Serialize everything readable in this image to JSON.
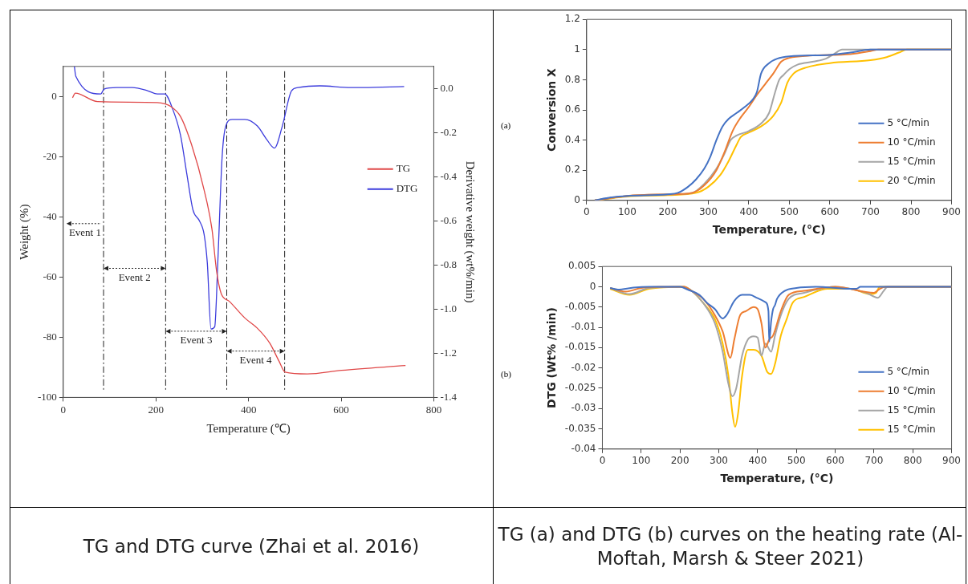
{
  "chart_data": [
    {
      "type": "line",
      "xlabel": "Temperature (℃)",
      "ylabel": "Weight (%)",
      "y2label": "Derivative weight (wt%/min)",
      "xlim": [
        0,
        800
      ],
      "xticks": [
        0,
        200,
        400,
        600,
        800
      ],
      "ylim": [
        -100,
        10
      ],
      "yticks": [
        -100,
        -80,
        -60,
        -40,
        -20,
        0
      ],
      "y2lim": [
        -1.4,
        0.1
      ],
      "y2ticks": [
        -1.4,
        -1.2,
        {
          "value": -1,
          "label": "-1.0"
        },
        -0.8,
        -0.6,
        -0.4,
        -0.2,
        {
          "value": 0,
          "label": "0.0"
        }
      ],
      "legend": "top right",
      "grid": false,
      "ref_lines": [
        {
          "axis": "x",
          "value": 87,
          "line_style": "dashed"
        },
        {
          "axis": "x",
          "value": 221,
          "line_style": "dashed"
        },
        {
          "axis": "x",
          "value": 353,
          "line_style": "dashed"
        },
        {
          "axis": "x",
          "value": 478,
          "line_style": "dashed"
        }
      ],
      "annotations": [
        "Event 1",
        "Event 2",
        "Event 3",
        "Event 4",
        "TG and DTG curve (Zhai et al. 2016)"
      ],
      "series": [
        {
          "name": "TG",
          "color": "#e04848",
          "x": [
            20,
            26,
            74,
            203,
            233,
            253,
            277,
            304,
            321,
            331,
            341,
            358,
            392,
            419,
            446,
            466,
            479,
            527,
            601,
            739
          ],
          "values": [
            -0.4,
            1.1,
            -1.7,
            -2,
            -3.4,
            -6.6,
            -16,
            -31,
            -44,
            -58,
            -65.5,
            -68,
            -73.6,
            -77,
            -82,
            -88,
            -91.6,
            -92.2,
            -91,
            -89.4
          ]
        },
        {
          "name": "DTG",
          "color": "#3c3cdc",
          "axis": "y2",
          "x": [
            24,
            27,
            81,
            88,
            115,
            149,
            182,
            203,
            219,
            236,
            253,
            267,
            280,
            294,
            304,
            311,
            319,
            327,
            334,
            343,
            351,
            365,
            378,
            392,
            419,
            439,
            456,
            473,
            493,
            507,
            554,
            621,
            648,
            736
          ],
          "values": [
            0.1,
            0.056,
            -0.025,
            -0.003,
            0.004,
            0.004,
            -0.01,
            -0.025,
            -0.025,
            -0.092,
            -0.21,
            -0.39,
            -0.55,
            -0.6,
            -0.66,
            -0.79,
            -1.09,
            -1.08,
            -0.77,
            -0.31,
            -0.17,
            -0.14,
            -0.14,
            -0.14,
            -0.17,
            -0.23,
            -0.27,
            -0.17,
            -0.01,
            0.004,
            0.012,
            0.004,
            0.004,
            0.009
          ]
        }
      ]
    },
    {
      "type": "line",
      "xlabel": "Temperature, (°C)",
      "ylabel": "Conversion X",
      "xlim": [
        0,
        900
      ],
      "xticks": [
        0,
        100,
        200,
        300,
        400,
        500,
        600,
        700,
        800,
        900
      ],
      "ylim": [
        0,
        1.2
      ],
      "yticks": [
        0,
        0.2,
        0.4,
        0.6,
        0.8,
        1,
        1.2
      ],
      "legend": "bottom right",
      "grid": false,
      "annotations": [
        "(a)",
        "TG (a) and DTG (b) curves on the heating rate (Al-Moftah, Marsh & Steer 2021)"
      ],
      "series": [
        {
          "name": "5 °C/min",
          "color": "#4472c4",
          "x": [
            20,
            60,
            100,
            200,
            225,
            250,
            270,
            290,
            305,
            320,
            335,
            350,
            370,
            390,
            410,
            420,
            430,
            450,
            470,
            500,
            600,
            650,
            700,
            900
          ],
          "values": [
            0,
            0.02,
            0.03,
            0.04,
            0.05,
            0.09,
            0.14,
            0.21,
            0.29,
            0.4,
            0.49,
            0.54,
            0.58,
            0.62,
            0.67,
            0.72,
            0.84,
            0.91,
            0.94,
            0.955,
            0.965,
            0.98,
            1,
            1
          ]
        },
        {
          "name": "10 °C/min",
          "color": "#ed7d31",
          "x": [
            20,
            100,
            200,
            260,
            290,
            320,
            340,
            360,
            380,
            400,
            420,
            440,
            460,
            480,
            500,
            550,
            650,
            700,
            720,
            900
          ],
          "values": [
            0,
            0.03,
            0.04,
            0.05,
            0.1,
            0.2,
            0.32,
            0.46,
            0.55,
            0.62,
            0.7,
            0.77,
            0.84,
            0.92,
            0.945,
            0.96,
            0.97,
            0.99,
            1,
            1
          ]
        },
        {
          "name": "15 °C/min",
          "color": "#a5a5a5",
          "x": [
            20,
            100,
            200,
            260,
            290,
            320,
            340,
            355,
            370,
            400,
            430,
            450,
            465,
            475,
            485,
            500,
            520,
            560,
            590,
            610,
            630,
            900
          ],
          "values": [
            0,
            0.03,
            0.04,
            0.05,
            0.11,
            0.21,
            0.31,
            0.4,
            0.43,
            0.46,
            0.51,
            0.58,
            0.72,
            0.8,
            0.83,
            0.87,
            0.9,
            0.92,
            0.94,
            0.97,
            1,
            1
          ]
        },
        {
          "name": "20 °C/min",
          "color": "#ffc000",
          "x": [
            20,
            100,
            200,
            270,
            300,
            330,
            350,
            370,
            380,
            400,
            430,
            460,
            480,
            495,
            510,
            540,
            600,
            700,
            740,
            770,
            790,
            900
          ],
          "values": [
            0,
            0.025,
            0.035,
            0.05,
            0.09,
            0.17,
            0.26,
            0.37,
            0.42,
            0.45,
            0.49,
            0.56,
            0.65,
            0.78,
            0.84,
            0.88,
            0.91,
            0.93,
            0.95,
            0.98,
            1,
            1
          ]
        }
      ]
    },
    {
      "type": "line",
      "xlabel": "Temperature, (°C)",
      "ylabel": "DTG (Wt% /min)",
      "xlim": [
        0,
        900
      ],
      "xticks": [
        0,
        100,
        200,
        300,
        400,
        500,
        600,
        700,
        800,
        900
      ],
      "ylim": [
        -0.04,
        0.005
      ],
      "yticks": [
        -0.04,
        -0.035,
        -0.03,
        -0.025,
        -0.02,
        -0.015,
        -0.01,
        -0.005,
        0,
        0.005
      ],
      "legend": "bottom right",
      "grid": false,
      "annotations": [
        "(b)"
      ],
      "series": [
        {
          "name": "5 °C/min",
          "color": "#4472c4",
          "x": [
            20,
            40,
            80,
            120,
            200,
            220,
            250,
            270,
            290,
            310,
            320,
            340,
            360,
            380,
            400,
            420,
            428,
            430,
            435,
            440,
            445,
            450,
            470,
            500,
            550,
            640,
            655,
            665,
            900
          ],
          "values": [
            -0.0003,
            -0.0007,
            -0.0002,
            0,
            0,
            -0.0007,
            -0.002,
            -0.004,
            -0.0055,
            -0.0078,
            -0.007,
            -0.0035,
            -0.002,
            -0.002,
            -0.0028,
            -0.0038,
            -0.006,
            -0.0135,
            -0.0085,
            -0.0055,
            -0.0045,
            -0.003,
            -0.001,
            -0.0003,
            0,
            -0.0005,
            -0.0005,
            0,
            0
          ]
        },
        {
          "name": "10 °C/min",
          "color": "#ed7d31",
          "x": [
            20,
            60,
            100,
            150,
            210,
            230,
            260,
            290,
            310,
            330,
            340,
            355,
            370,
            390,
            400,
            410,
            420,
            430,
            440,
            460,
            480,
            520,
            600,
            700,
            715,
            730,
            900
          ],
          "values": [
            -0.0003,
            -0.0012,
            -0.0003,
            0,
            0,
            -0.001,
            -0.003,
            -0.007,
            -0.011,
            -0.0175,
            -0.013,
            -0.007,
            -0.006,
            -0.005,
            -0.0055,
            -0.009,
            -0.015,
            -0.013,
            -0.012,
            -0.006,
            -0.002,
            -0.001,
            0,
            -0.0015,
            -0.0005,
            0,
            0
          ]
        },
        {
          "name": "15 °C/min",
          "color": "#a5a5a5",
          "x": [
            20,
            70,
            120,
            210,
            230,
            260,
            290,
            310,
            325,
            335,
            345,
            360,
            375,
            390,
            400,
            410,
            420,
            435,
            445,
            460,
            480,
            520,
            600,
            680,
            710,
            725,
            735,
            900
          ],
          "values": [
            -0.0003,
            -0.0018,
            -0.0003,
            0,
            -0.001,
            -0.004,
            -0.009,
            -0.016,
            -0.024,
            -0.027,
            -0.025,
            -0.017,
            -0.013,
            -0.0122,
            -0.0125,
            -0.017,
            -0.014,
            -0.016,
            -0.012,
            -0.007,
            -0.003,
            -0.0015,
            0,
            -0.0015,
            -0.0027,
            -0.001,
            0,
            0
          ]
        },
        {
          "name": "15 °C/min",
          "color": "#ffc000",
          "x": [
            20,
            70,
            120,
            210,
            230,
            260,
            290,
            310,
            325,
            335,
            342,
            350,
            360,
            375,
            390,
            410,
            425,
            435,
            445,
            460,
            475,
            490,
            520,
            580,
            640,
            690,
            705,
            715,
            900
          ],
          "values": [
            -0.0005,
            -0.002,
            -0.0005,
            0,
            -0.001,
            -0.004,
            -0.008,
            -0.014,
            -0.022,
            -0.031,
            -0.0345,
            -0.031,
            -0.022,
            -0.0155,
            -0.0155,
            -0.017,
            -0.021,
            -0.0215,
            -0.019,
            -0.012,
            -0.008,
            -0.004,
            -0.0025,
            -0.0005,
            -0.0005,
            -0.0018,
            -0.0015,
            0,
            0
          ]
        }
      ]
    }
  ]
}
